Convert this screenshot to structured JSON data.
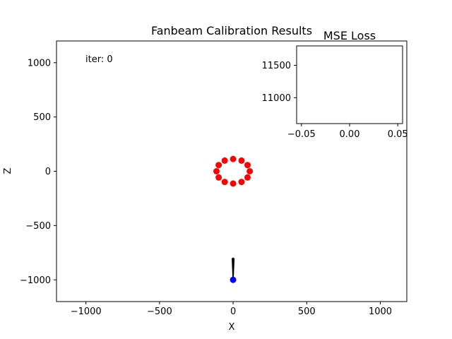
{
  "chart_data": [
    {
      "type": "scatter",
      "title": "Fanbeam Calibration Results",
      "xlabel": "X",
      "ylabel": "Z",
      "xlim": [
        -1200,
        1180
      ],
      "ylim": [
        -1200,
        1200
      ],
      "xticks": [
        -1000,
        -500,
        0,
        500,
        1000
      ],
      "yticks": [
        -1000,
        -500,
        0,
        500,
        1000
      ],
      "grid": false,
      "annotation": "iter: 0",
      "series": [
        {
          "color": "#ff0000",
          "marker": "circle",
          "points": [
            [
              113,
              0
            ],
            [
              98,
              57
            ],
            [
              57,
              98
            ],
            [
              0,
              113
            ],
            [
              -57,
              98
            ],
            [
              -98,
              57
            ],
            [
              -113,
              0
            ],
            [
              -98,
              -57
            ],
            [
              -57,
              -98
            ],
            [
              0,
              -113
            ],
            [
              57,
              -98
            ],
            [
              98,
              -57
            ]
          ]
        },
        {
          "color": "#0000ff",
          "marker": "circle",
          "points": [
            [
              0,
              -1000
            ]
          ]
        }
      ],
      "fan_lines": {
        "color": "#000000",
        "origin": [
          0,
          -1000
        ],
        "targets": [
          [
            -6,
            -800
          ],
          [
            0,
            -795
          ],
          [
            6,
            -800
          ]
        ]
      }
    },
    {
      "type": "line",
      "title": "MSE Loss",
      "xlabel": "",
      "ylabel": "",
      "xlim": [
        -0.055,
        0.055
      ],
      "ylim": [
        10600,
        11800
      ],
      "xticks": [
        "-0.05",
        "0.00",
        "0.05"
      ],
      "yticks": [
        "11000",
        "11500"
      ],
      "series": [
        {
          "color": "#1f77b4",
          "values": []
        }
      ]
    }
  ]
}
